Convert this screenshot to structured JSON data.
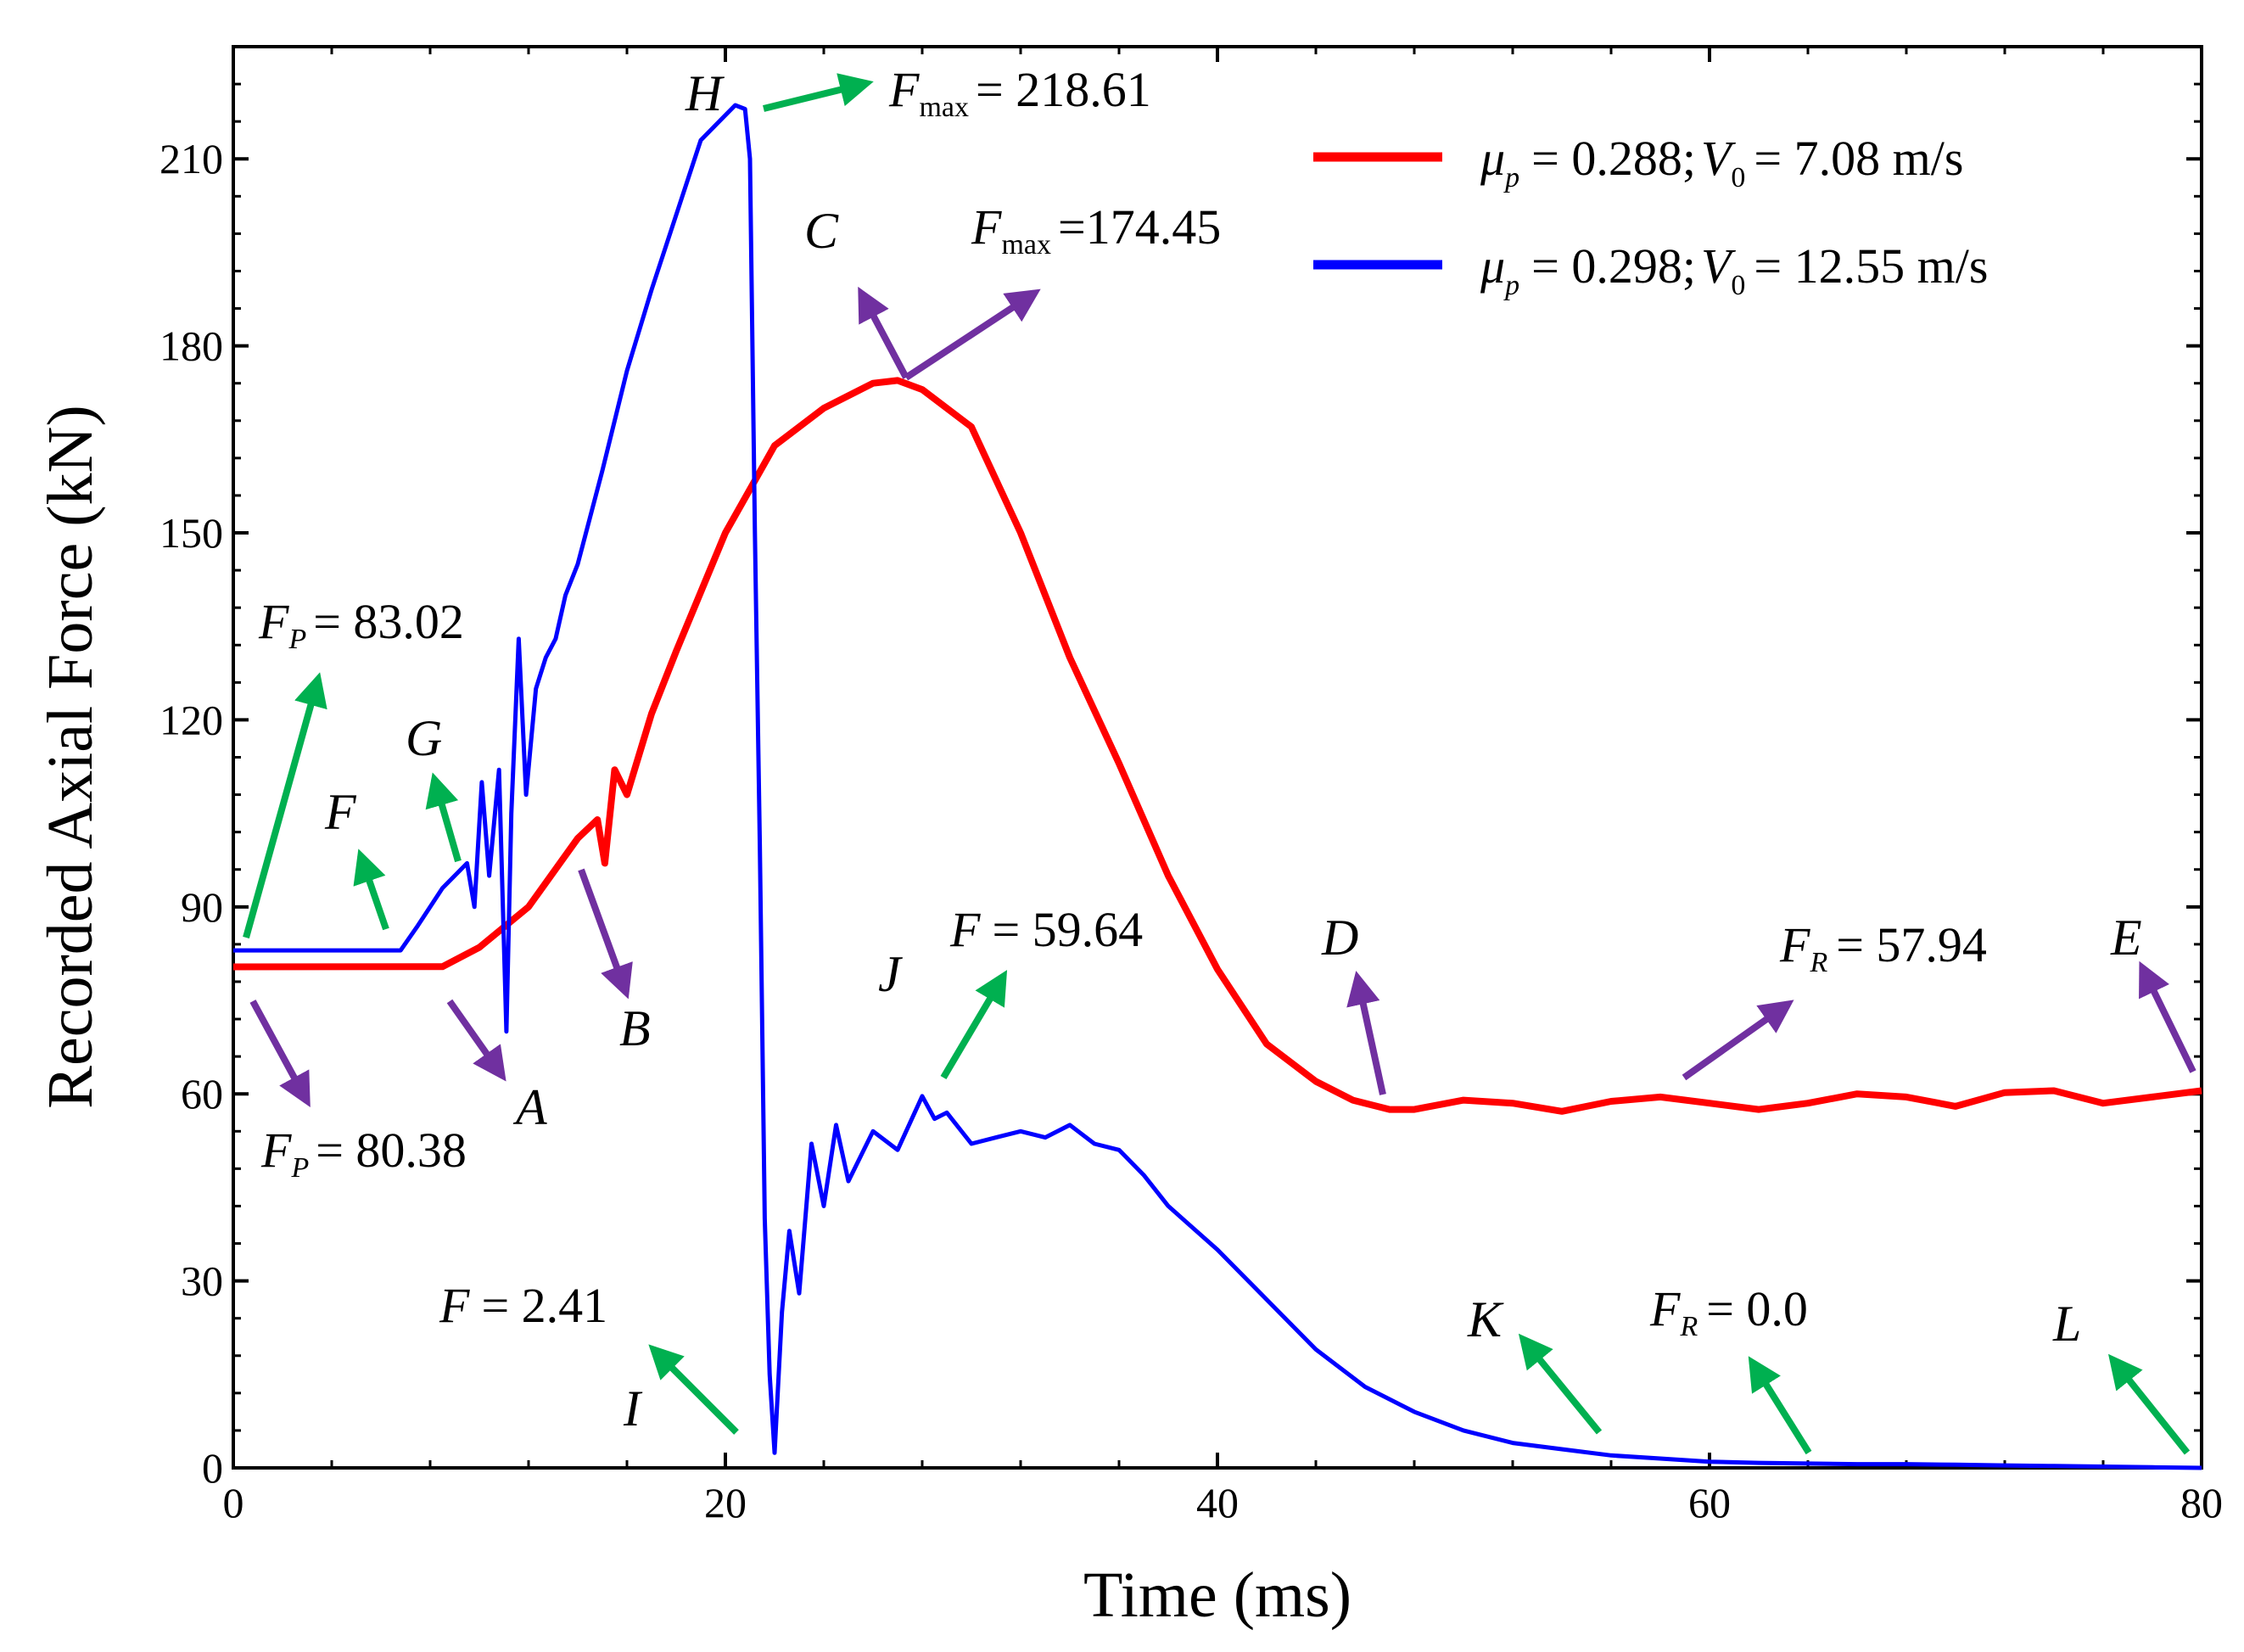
{
  "chart_data": {
    "type": "line",
    "xlabel": "Time (ms)",
    "ylabel": "Recorded Axial Force (kN)",
    "xlim": [
      0,
      80
    ],
    "ylim": [
      0,
      228
    ],
    "xticks": [
      0,
      20,
      40,
      60,
      80
    ],
    "yticks": [
      0,
      30,
      60,
      90,
      120,
      150,
      180,
      210
    ],
    "grid": false,
    "legend_position": "top-right",
    "series": [
      {
        "name": "μp = 0.288; V0 = 7.08 m/s",
        "color": "#ff0000",
        "legend": {
          "mu_sym": "μ",
          "mu_sub": "p",
          "mu_val": "= 0.288;",
          "v_sym": "V",
          "v_sub": "0",
          "v_val": "= 7.08 m/s"
        },
        "x": [
          0,
          8.5,
          10,
          12,
          14,
          14.8,
          15.1,
          15.5,
          16,
          17,
          18,
          20,
          22,
          24,
          26,
          27,
          28,
          30,
          32,
          34,
          36,
          38,
          40,
          42,
          44,
          45.5,
          47,
          48,
          50,
          52,
          54,
          56,
          58,
          60,
          62,
          64,
          66,
          68,
          70,
          72,
          74,
          76,
          78,
          80
        ],
        "y": [
          80.38,
          80.4,
          83.5,
          90,
          101,
          104,
          97,
          112,
          108,
          121,
          131,
          150,
          164,
          170,
          174,
          174.45,
          173,
          167,
          150,
          130,
          113,
          95,
          80,
          68,
          62,
          59,
          57.5,
          57.5,
          59,
          58.5,
          57.2,
          58.8,
          59.5,
          58.5,
          57.5,
          58.5,
          60,
          59.5,
          58,
          60.2,
          60.5,
          58.5,
          59.5,
          60.5
        ]
      },
      {
        "name": "μp = 0.298; V0 = 12.55 m/s",
        "color": "#0000ff",
        "legend": {
          "mu_sym": "μ",
          "mu_sub": "p",
          "mu_val": "= 0.298;",
          "v_sym": "V",
          "v_sub": "0",
          "v_val": "= 12.55 m/s"
        },
        "x": [
          0,
          6.8,
          7.5,
          8.5,
          9.5,
          9.8,
          10.1,
          10.4,
          10.8,
          11.1,
          11.3,
          11.6,
          11.9,
          12.3,
          12.7,
          13.1,
          13.5,
          14,
          15,
          16,
          17,
          18,
          19,
          20,
          20.4,
          20.8,
          21.0,
          21.2,
          21.4,
          21.6,
          21.8,
          22.0,
          22.3,
          22.6,
          23.0,
          23.5,
          24,
          24.5,
          25,
          26,
          27,
          28,
          28.5,
          29,
          30,
          31,
          32,
          33,
          34,
          35,
          36,
          37,
          38,
          40,
          42,
          44,
          46,
          48,
          50,
          52,
          54,
          56,
          58,
          60,
          62,
          64,
          66,
          68,
          70,
          72,
          74,
          76,
          78,
          80
        ],
        "y": [
          83.02,
          83.02,
          87,
          93,
          97,
          90,
          110,
          95,
          112,
          70,
          105,
          133,
          108,
          125,
          130,
          133,
          140,
          145,
          160,
          176,
          189,
          201,
          213,
          217,
          218.61,
          218,
          210,
          150,
          100,
          40,
          15,
          2.41,
          25,
          38,
          28,
          52,
          42,
          55,
          46,
          54,
          51,
          59.64,
          56,
          57,
          52,
          53,
          54,
          53,
          55,
          52,
          51,
          47,
          42,
          35,
          27,
          19,
          13,
          9,
          6,
          4,
          3,
          2,
          1.5,
          1.0,
          0.8,
          0.7,
          0.6,
          0.6,
          0.5,
          0.4,
          0.3,
          0.2,
          0.1,
          0.0
        ]
      }
    ],
    "annotations": {
      "letters": [
        {
          "id": "A",
          "text": "A"
        },
        {
          "id": "B",
          "text": "B"
        },
        {
          "id": "C",
          "text": "C"
        },
        {
          "id": "D",
          "text": "D"
        },
        {
          "id": "E",
          "text": "E"
        },
        {
          "id": "F",
          "text": "F"
        },
        {
          "id": "G",
          "text": "G"
        },
        {
          "id": "H",
          "text": "H"
        },
        {
          "id": "I",
          "text": "I"
        },
        {
          "id": "J",
          "text": "J"
        },
        {
          "id": "K",
          "text": "K"
        },
        {
          "id": "L",
          "text": "L"
        }
      ],
      "values": [
        {
          "id": "fp-red",
          "sym": "F",
          "sub": "P",
          "val": "= 80.38"
        },
        {
          "id": "fp-blue",
          "sym": "F",
          "sub": "P",
          "val": "= 83.02"
        },
        {
          "id": "fmax-red",
          "sym": "F",
          "sub": "max",
          "val": "=174.45"
        },
        {
          "id": "fmax-blue",
          "sym": "F",
          "sub": "max",
          "val": "= 218.61"
        },
        {
          "id": "fr-red",
          "sym": "F",
          "sub": "R",
          "val": "= 57.94"
        },
        {
          "id": "fr-blue",
          "sym": "F",
          "sub": "R",
          "val": "= 0.0"
        },
        {
          "id": "f-min",
          "sym": "F",
          "sub": "",
          "val": "= 2.41"
        },
        {
          "id": "f-j",
          "sym": "F",
          "sub": "",
          "val": "= 59.64"
        }
      ],
      "arrow_colors": {
        "purple": "#7030a0",
        "green": "#00b050"
      }
    }
  }
}
